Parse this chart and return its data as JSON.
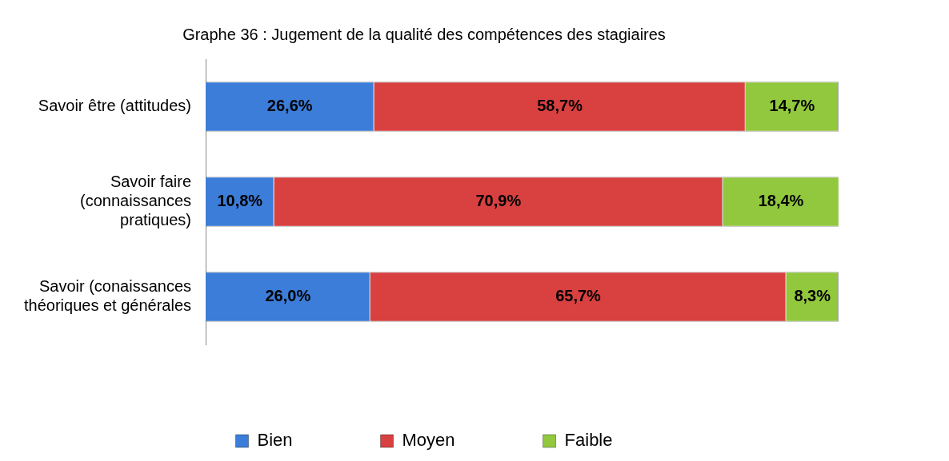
{
  "chart_data": {
    "type": "bar",
    "title": "Graphe 36 : Jugement de la qualité des compétences des stagiaires",
    "orientation": "horizontal",
    "stacked": true,
    "categories": [
      "Savoir être (attitudes)",
      "Savoir faire (connaissances pratiques)",
      "Savoir (conaissances théoriques et générales"
    ],
    "series": [
      {
        "name": "Bien",
        "color": "#3b7dd8",
        "values": [
          26.6,
          10.8,
          26.0
        ],
        "value_labels": [
          "26,6%",
          "10,8%",
          "26,0%"
        ]
      },
      {
        "name": "Moyen",
        "color": "#d94040",
        "values": [
          58.7,
          70.9,
          65.7
        ],
        "value_labels": [
          "58,7%",
          "70,9%",
          "65,7%"
        ]
      },
      {
        "name": "Faible",
        "color": "#92c83e",
        "values": [
          14.7,
          18.4,
          8.3
        ],
        "value_labels": [
          "14,7%",
          "18,4%",
          "8,3%"
        ]
      }
    ],
    "xlim": [
      0,
      100
    ],
    "tick_labels": "y",
    "legend": "bottom"
  }
}
